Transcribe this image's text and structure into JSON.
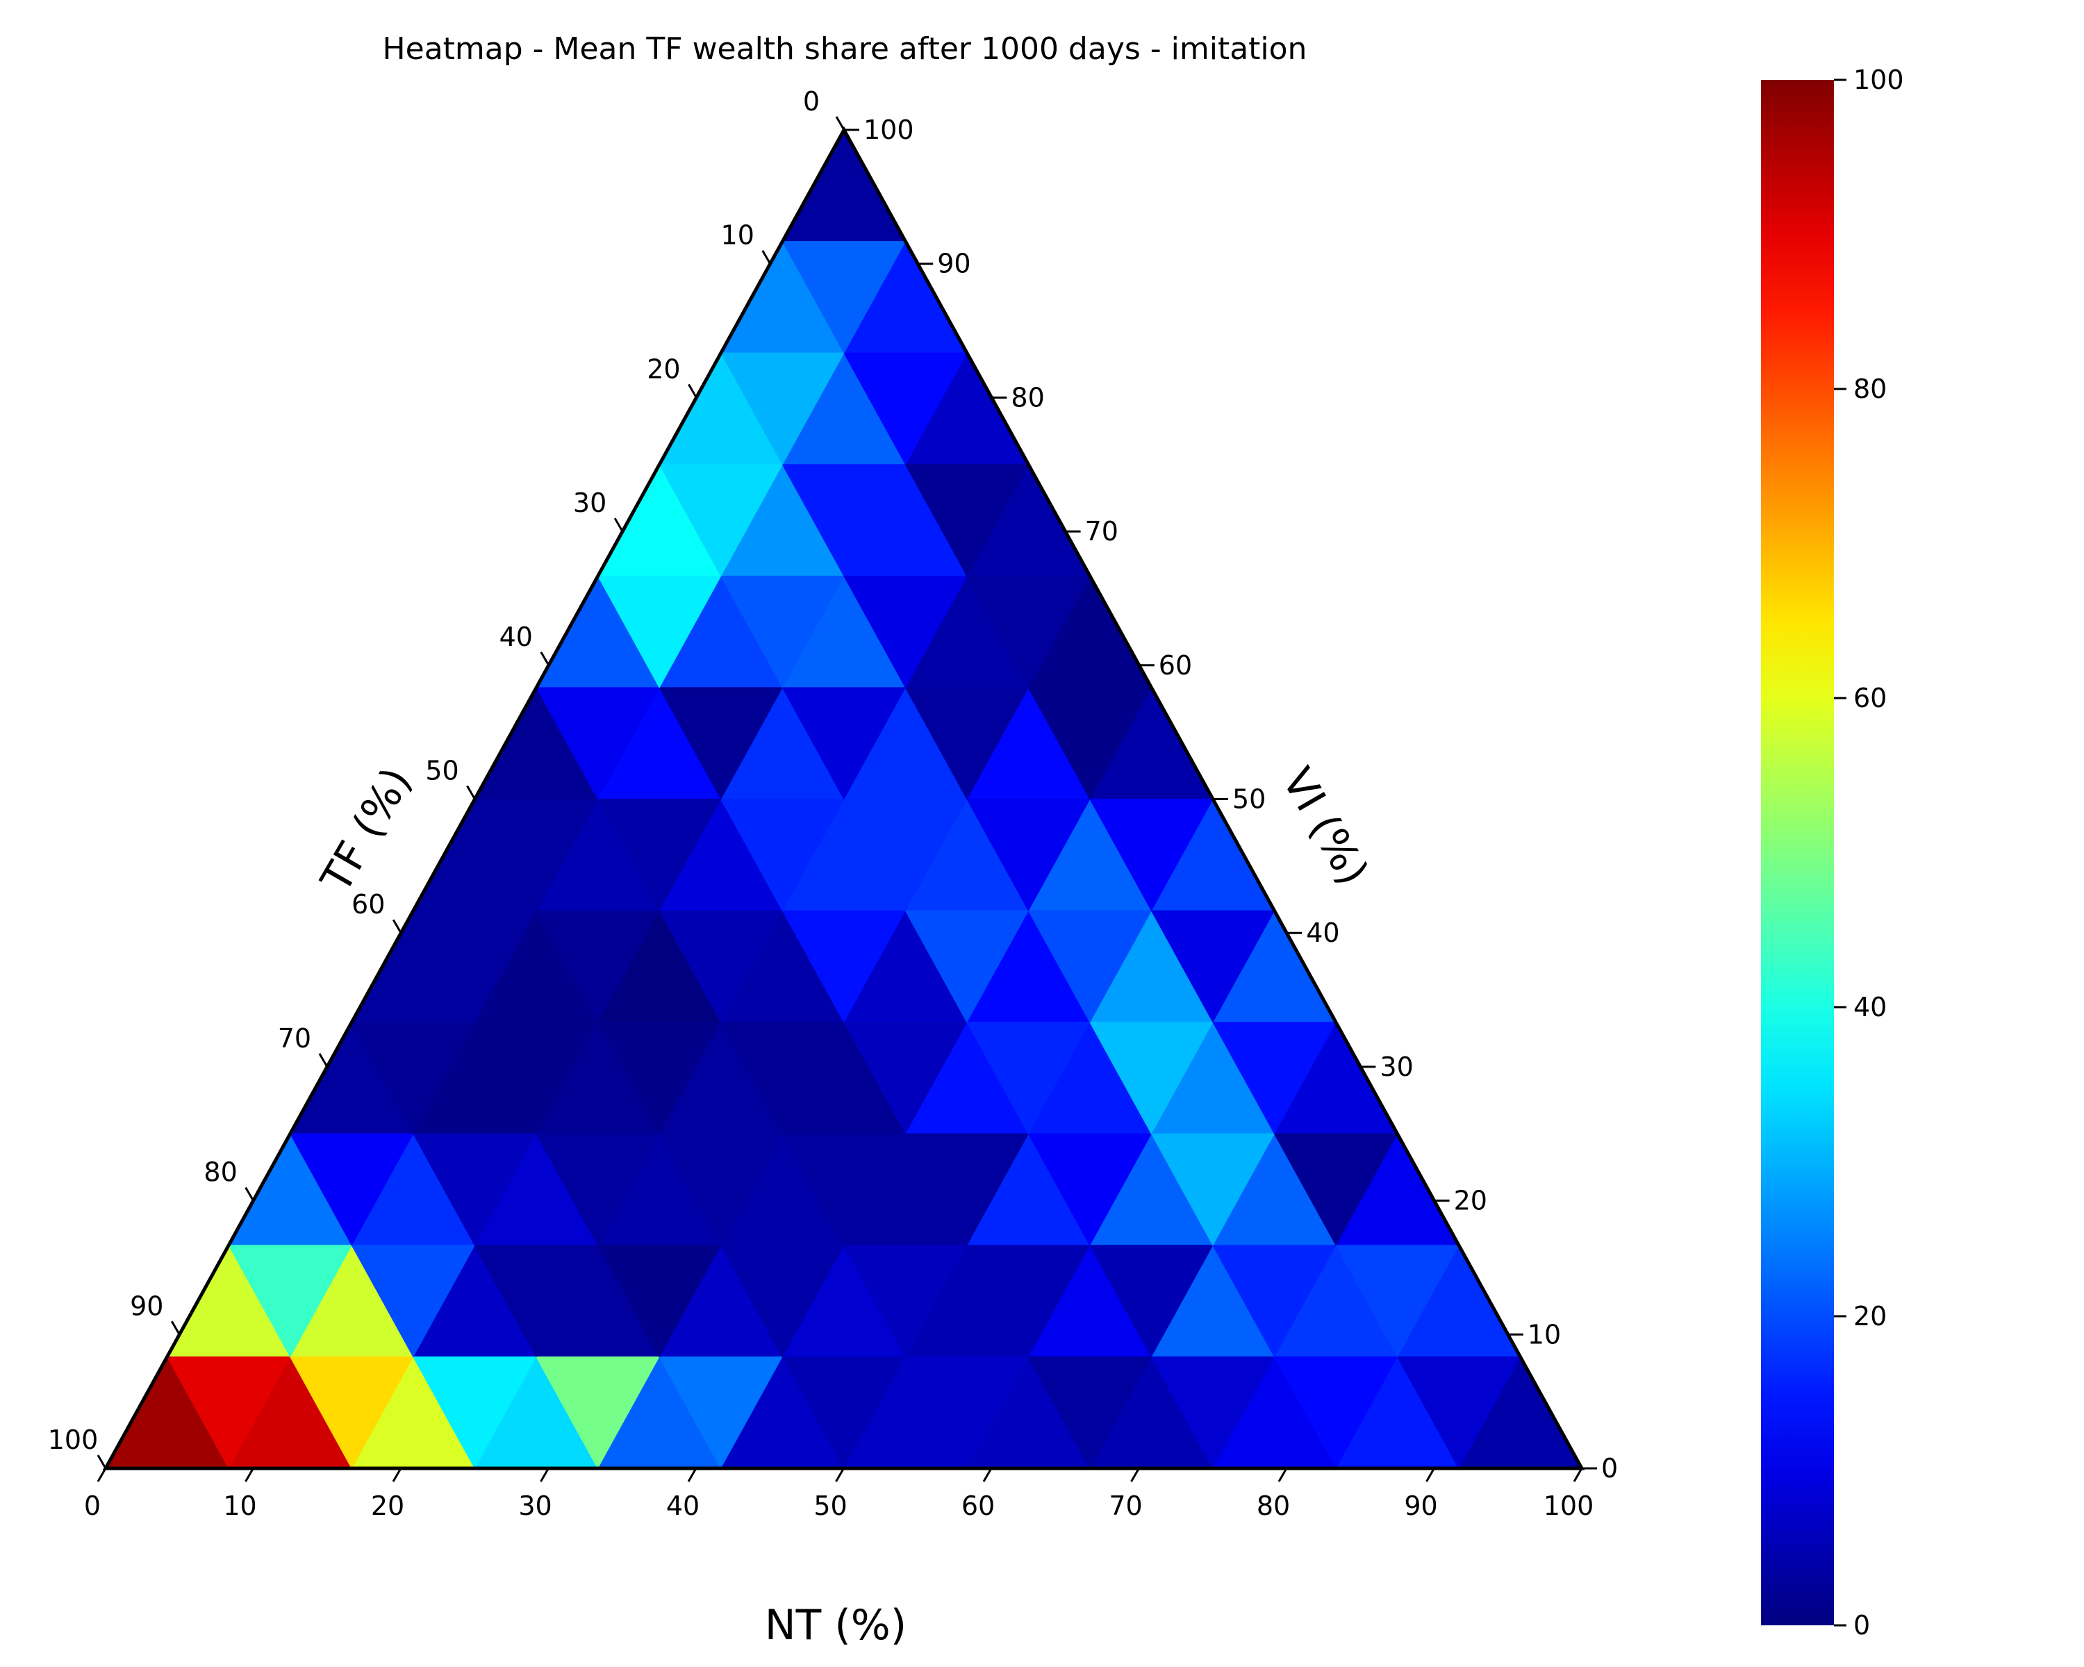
{
  "chart_data": {
    "type": "heatmap",
    "subtype": "ternary",
    "title": "Heatmap - Mean TF wealth share after 1000 days - imitation",
    "axes": {
      "bottom": {
        "label": "NT (%)",
        "ticks": [
          "0",
          "10",
          "20",
          "30",
          "40",
          "50",
          "60",
          "70",
          "80",
          "90",
          "100"
        ]
      },
      "left": {
        "label": "TF (%)",
        "ticks": [
          "0",
          "10",
          "20",
          "30",
          "40",
          "50",
          "60",
          "70",
          "80",
          "90",
          "100"
        ]
      },
      "right": {
        "label": "VI (%)",
        "ticks": [
          "0",
          "10",
          "20",
          "30",
          "40",
          "50",
          "60",
          "70",
          "80",
          "90",
          "100"
        ]
      }
    },
    "colorbar": {
      "colormap": "jet",
      "range": [
        0,
        100
      ],
      "ticks": [
        "0",
        "20",
        "40",
        "60",
        "80",
        "100"
      ]
    },
    "grid": {
      "divisions": 12,
      "cell_coordinates": "(i, j, up); i = NT step, j = VI step from bottom, TF = 12 - i - j; NT% = i*100/12, VI% = j*100/12",
      "upward_cells": [
        [
          97,
          92,
          59,
          34,
          22,
          7,
          7,
          6,
          5,
          11,
          15,
          4
        ],
        [
          58,
          58,
          7,
          3,
          7,
          8,
          5,
          11,
          22,
          18,
          17
        ],
        [
          24,
          17,
          8,
          4,
          4,
          3,
          16,
          22,
          22,
          11
        ],
        [
          3,
          1,
          2,
          3,
          2,
          14,
          15,
          26,
          9
        ],
        [
          3,
          1,
          0,
          4,
          7,
          13,
          28,
          21
        ],
        [
          3,
          5,
          9,
          17,
          18,
          22,
          19
        ],
        [
          2,
          13,
          17,
          17,
          13,
          4
        ],
        [
          21,
          19,
          22,
          4,
          1
        ],
        [
          38,
          27,
          15,
          4
        ],
        [
          33,
          22,
          7
        ],
        [
          26,
          15
        ],
        [
          3
        ]
      ],
      "downward_cells": [
        [
          90,
          66,
          36,
          49,
          24,
          5,
          7,
          3,
          8,
          13,
          8
        ],
        [
          43,
          20,
          3,
          1,
          4,
          6,
          5,
          5,
          16,
          19
        ],
        [
          12,
          6,
          3,
          3,
          3,
          3,
          12,
          30,
          2
        ],
        [
          2,
          1,
          1,
          2,
          6,
          16,
          31,
          14
        ],
        [
          3,
          2,
          5,
          14,
          20,
          20,
          10
        ],
        [
          3,
          4,
          16,
          17,
          11,
          12
        ],
        [
          11,
          2,
          9,
          3,
          1
        ],
        [
          36,
          21,
          10,
          3
        ],
        [
          34,
          15,
          2
        ],
        [
          30,
          13
        ],
        [
          22
        ]
      ]
    }
  }
}
